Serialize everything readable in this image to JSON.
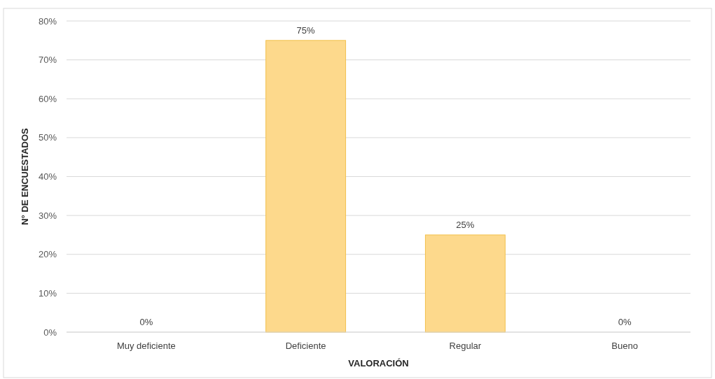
{
  "chart_data": {
    "type": "bar",
    "xlabel": "VALORACIÓN",
    "ylabel": "N° DE ENCUESTADOS",
    "categories": [
      "Muy deficiente",
      "Deficiente",
      "Regular",
      "Bueno"
    ],
    "values": [
      0,
      75,
      25,
      0
    ],
    "value_labels": [
      "0%",
      "75%",
      "25%",
      "0%"
    ],
    "color": "#fdd98c",
    "ylim": [
      0,
      80
    ],
    "yticks": [
      {
        "value": 0,
        "label": "0%"
      },
      {
        "value": 10,
        "label": "10%"
      },
      {
        "value": 20,
        "label": "20%"
      },
      {
        "value": 30,
        "label": "30%"
      },
      {
        "value": 40,
        "label": "40%"
      },
      {
        "value": 50,
        "label": "50%"
      },
      {
        "value": 60,
        "label": "60%"
      },
      {
        "value": 70,
        "label": "70%"
      },
      {
        "value": 80,
        "label": "80%"
      }
    ],
    "grid": "y"
  }
}
